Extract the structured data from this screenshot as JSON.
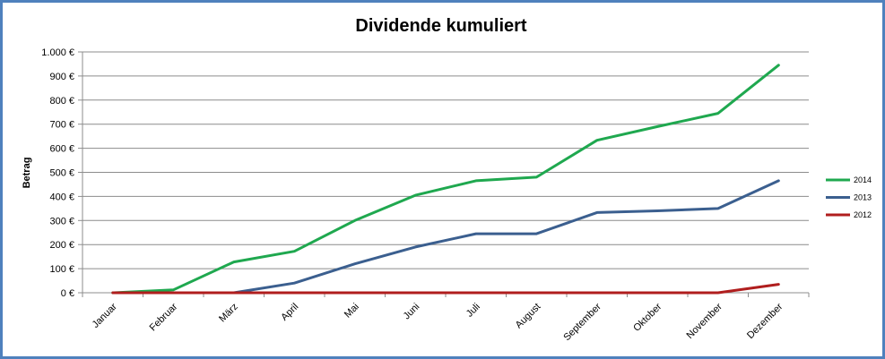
{
  "chart_data": {
    "type": "line",
    "title": "Dividende kumuliert",
    "xlabel": "",
    "ylabel": "Betrag",
    "categories": [
      "Januar",
      "Februar",
      "März",
      "April",
      "Mai",
      "Juni",
      "Juli",
      "August",
      "September",
      "Oktober",
      "November",
      "Dezember"
    ],
    "ylim": [
      0,
      1000
    ],
    "yticks": [
      0,
      100,
      200,
      300,
      400,
      500,
      600,
      700,
      800,
      900,
      1000
    ],
    "ytick_labels": [
      "0 €",
      "100 €",
      "200 €",
      "300 €",
      "400 €",
      "500 €",
      "600 €",
      "700 €",
      "800 €",
      "900 €",
      "1.000 €"
    ],
    "grid": true,
    "legend_position": "right",
    "series": [
      {
        "name": "2014",
        "color": "#1fa84f",
        "values": [
          0,
          12,
          128,
          172,
          300,
          405,
          465,
          480,
          633,
          690,
          745,
          945
        ]
      },
      {
        "name": "2013",
        "color": "#3b5f8f",
        "values": [
          null,
          null,
          0,
          40,
          120,
          190,
          245,
          245,
          333,
          340,
          350,
          465
        ]
      },
      {
        "name": "2012",
        "color": "#b01e1e",
        "values": [
          0,
          0,
          0,
          0,
          0,
          0,
          0,
          0,
          0,
          0,
          0,
          35
        ]
      }
    ]
  }
}
